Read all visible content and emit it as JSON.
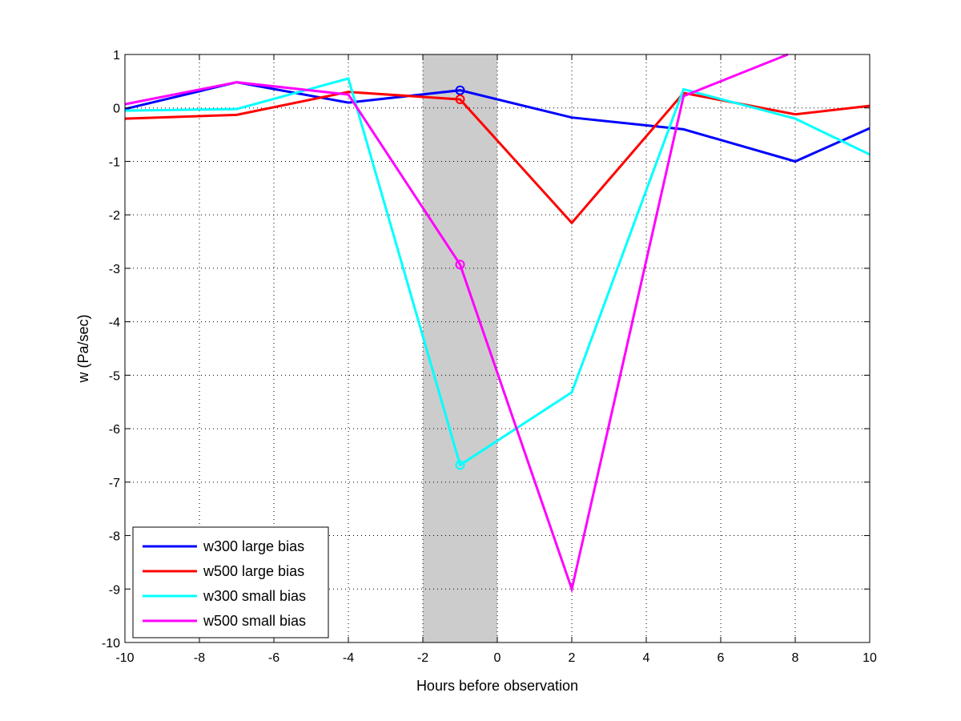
{
  "chart_data": {
    "type": "line",
    "title": "",
    "xlabel": "Hours before observation",
    "ylabel": "w (Pa/sec)",
    "xlim": [
      -10,
      10
    ],
    "ylim": [
      -10,
      1
    ],
    "xticks": [
      -10,
      -8,
      -6,
      -4,
      -2,
      0,
      2,
      4,
      6,
      8,
      10
    ],
    "yticks": [
      1,
      0,
      -1,
      -2,
      -3,
      -4,
      -5,
      -6,
      -7,
      -8,
      -9,
      -10
    ],
    "grid": "dotted",
    "legend_position": "bottom-left",
    "shaded_region": {
      "x": [
        -2,
        0
      ],
      "color": "#cccccc"
    },
    "series": [
      {
        "name": "w300 large bias",
        "color": "#0000ff",
        "x": [
          -10,
          -7,
          -4,
          -1,
          2,
          5,
          8,
          10
        ],
        "y": [
          -0.02,
          0.48,
          0.1,
          0.33,
          -0.18,
          -0.4,
          -1.0,
          -0.38
        ],
        "marker": {
          "x": -1,
          "y": 0.33
        }
      },
      {
        "name": "w500 large bias",
        "color": "#ff0000",
        "x": [
          -10,
          -7,
          -4,
          -1,
          2,
          5,
          8,
          10
        ],
        "y": [
          -0.2,
          -0.13,
          0.3,
          0.16,
          -2.15,
          0.28,
          -0.12,
          0.04
        ],
        "marker": {
          "x": -1,
          "y": 0.16
        }
      },
      {
        "name": "w300 small bias",
        "color": "#00ffff",
        "x": [
          -10,
          -7,
          -4,
          -1,
          2,
          5,
          8,
          10
        ],
        "y": [
          -0.05,
          -0.02,
          0.55,
          -6.68,
          -5.32,
          0.35,
          -0.2,
          -0.87
        ],
        "marker": {
          "x": -1,
          "y": -6.68
        }
      },
      {
        "name": "w500 small bias",
        "color": "#ff00ff",
        "x": [
          -10,
          -7,
          -4,
          -1,
          2,
          5,
          7.8
        ],
        "y": [
          0.07,
          0.48,
          0.25,
          -2.93,
          -9.0,
          0.22,
          1.05
        ],
        "marker": {
          "x": -1,
          "y": -2.93
        }
      }
    ]
  }
}
